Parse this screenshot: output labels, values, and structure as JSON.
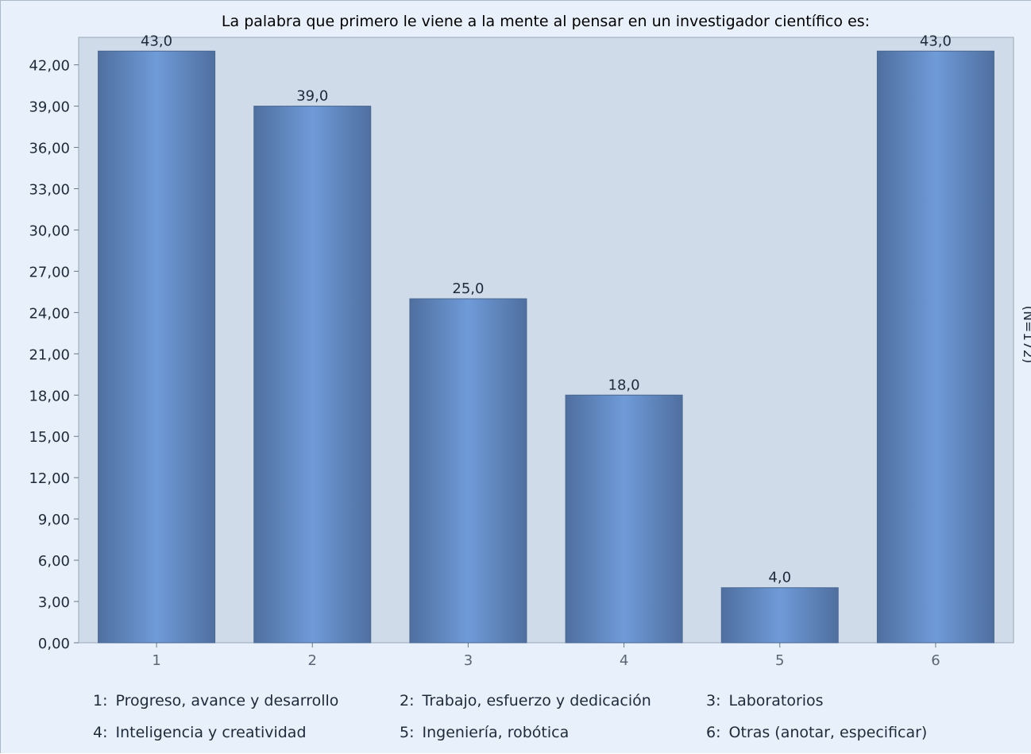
{
  "chart_data": {
    "type": "bar",
    "title": "La palabra que primero le viene a la mente al pensar en un investigador científico es:",
    "side_note": "(N=172)",
    "categories": [
      "1",
      "2",
      "3",
      "4",
      "5",
      "6"
    ],
    "values": [
      43.0,
      39.0,
      25.0,
      18.0,
      4.0,
      43.0
    ],
    "value_labels": [
      "43,0",
      "39,0",
      "25,0",
      "18,0",
      "4,0",
      "43,0"
    ],
    "ylim": [
      0,
      44
    ],
    "yticks": [
      "0,00",
      "3,00",
      "6,00",
      "9,00",
      "12,00",
      "15,00",
      "18,00",
      "21,00",
      "24,00",
      "27,00",
      "30,00",
      "33,00",
      "36,00",
      "39,00",
      "42,00"
    ],
    "ytick_values": [
      0,
      3,
      6,
      9,
      12,
      15,
      18,
      21,
      24,
      27,
      30,
      33,
      36,
      39,
      42
    ],
    "grid": false,
    "legend_position": "bottom",
    "legend": [
      {
        "num": "1:",
        "label": "Progreso, avance y desarrollo"
      },
      {
        "num": "2:",
        "label": "Trabajo, esfuerzo y dedicación"
      },
      {
        "num": "3:",
        "label": "Laboratorios"
      },
      {
        "num": "4:",
        "label": "Inteligencia y creatividad"
      },
      {
        "num": "5:",
        "label": "Ingeniería, robótica"
      },
      {
        "num": "6:",
        "label": "Otras (anotar, especificar)"
      }
    ],
    "colors": {
      "bar_edge": "#4f6f9f",
      "bar_center": "#6f9bd8",
      "plot_bg": "#cfdbe8",
      "frame_bg": "#e8f1fb"
    }
  }
}
